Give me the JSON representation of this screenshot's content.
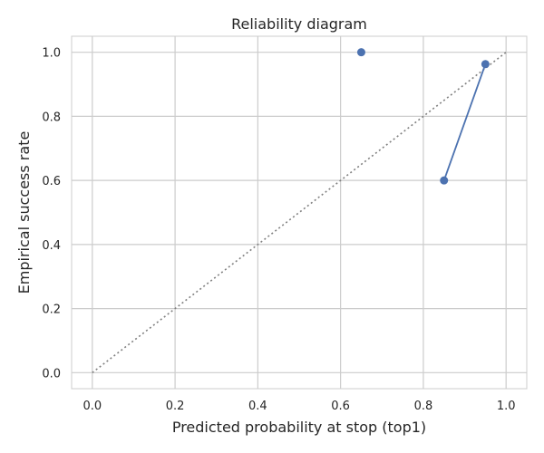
{
  "chart_data": {
    "type": "line",
    "title": "Reliability diagram",
    "xlabel": "Predicted probability at stop (top1)",
    "ylabel": "Empirical success rate",
    "xlim": [
      -0.05,
      1.05
    ],
    "ylim": [
      -0.05,
      1.05
    ],
    "xticks": [
      0.0,
      0.2,
      0.4,
      0.6,
      0.8,
      1.0
    ],
    "yticks": [
      0.0,
      0.2,
      0.4,
      0.6,
      0.8,
      1.0
    ],
    "xtick_labels": [
      "0.0",
      "0.2",
      "0.4",
      "0.6",
      "0.8",
      "1.0"
    ],
    "ytick_labels": [
      "0.0",
      "0.2",
      "0.4",
      "0.6",
      "0.8",
      "1.0"
    ],
    "grid": true,
    "reference_line": {
      "style": "dotted",
      "color": "#808080",
      "x": [
        0,
        1
      ],
      "y": [
        0,
        1
      ]
    },
    "series": [
      {
        "color": "#4c72b0",
        "segments": [
          [
            {
              "x": 0.65,
              "y": 1.0
            }
          ],
          [
            {
              "x": 0.85,
              "y": 0.6
            },
            {
              "x": 0.95,
              "y": 0.963
            }
          ]
        ]
      }
    ]
  }
}
